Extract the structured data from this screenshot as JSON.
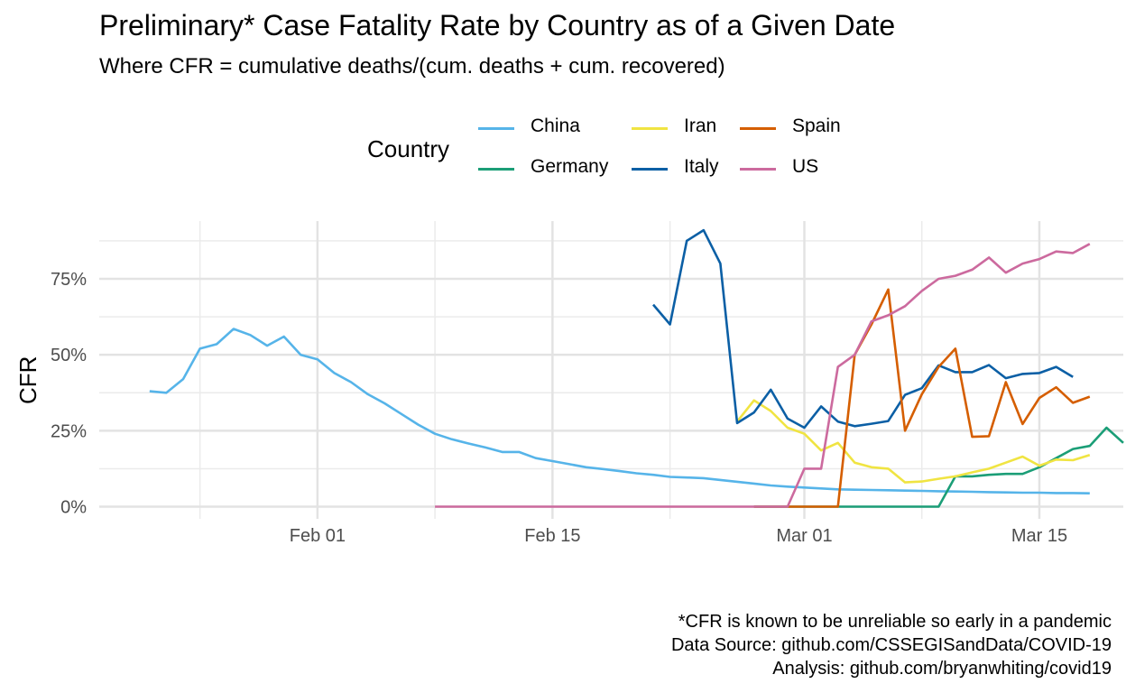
{
  "chart_data": {
    "type": "line",
    "title": "Preliminary* Case Fatality Rate by Country as of a Given Date",
    "subtitle": "Where CFR = cumulative deaths/(cum. deaths + cum. recovered)",
    "xlabel": "",
    "ylabel": "CFR",
    "legend_title": "Country",
    "legend_position": "top",
    "grid": true,
    "x_ticks": [
      "Feb 01",
      "Feb 15",
      "Mar 01",
      "Mar 15"
    ],
    "x_tick_dates": [
      "2020-02-01",
      "2020-02-15",
      "2020-03-01",
      "2020-03-15"
    ],
    "y_ticks": [
      "0%",
      "25%",
      "50%",
      "75%"
    ],
    "y_tick_values": [
      0,
      0.25,
      0.5,
      0.75
    ],
    "xlim": [
      "2020-01-19",
      "2020-03-20"
    ],
    "ylim": [
      -0.04,
      0.94
    ],
    "start_date": "2020-01-22",
    "series": [
      {
        "name": "China",
        "color": "#56B4E9",
        "start": "2020-01-22",
        "values": [
          0.38,
          0.375,
          0.42,
          0.52,
          0.535,
          0.585,
          0.565,
          0.53,
          0.56,
          0.5,
          0.485,
          0.44,
          0.41,
          0.37,
          0.34,
          0.305,
          0.27,
          0.24,
          0.222,
          0.208,
          0.195,
          0.18,
          0.18,
          0.16,
          0.15,
          0.14,
          0.13,
          0.124,
          0.117,
          0.11,
          0.105,
          0.098,
          0.096,
          0.094,
          0.088,
          0.082,
          0.076,
          0.07,
          0.066,
          0.063,
          0.06,
          0.057,
          0.056,
          0.055,
          0.054,
          0.053,
          0.052,
          0.051,
          0.05,
          0.049,
          0.048,
          0.047,
          0.046,
          0.046,
          0.045,
          0.045,
          0.044
        ]
      },
      {
        "name": "Germany",
        "color": "#1B9E77",
        "start": "2020-02-27",
        "values": [
          0,
          0,
          0,
          0,
          0,
          0,
          0,
          0,
          0,
          0,
          0,
          0,
          0.1,
          0.1,
          0.105,
          0.108,
          0.108,
          0.13,
          0.16,
          0.19,
          0.2,
          0.26,
          0.21
        ]
      },
      {
        "name": "Iran",
        "color": "#F0E442",
        "start": "2020-02-26",
        "values": [
          0.28,
          0.35,
          0.315,
          0.26,
          0.24,
          0.185,
          0.21,
          0.145,
          0.13,
          0.125,
          0.08,
          0.083,
          0.092,
          0.1,
          0.113,
          0.125,
          0.145,
          0.165,
          0.135,
          0.155,
          0.153,
          0.17
        ]
      },
      {
        "name": "Italy",
        "color": "#0B5FA5",
        "start": "2020-02-21",
        "values": [
          0.665,
          0.6,
          0.875,
          0.91,
          0.8,
          0.275,
          0.31,
          0.385,
          0.29,
          0.26,
          0.33,
          0.28,
          0.265,
          0.273,
          0.282,
          0.368,
          0.39,
          0.465,
          0.443,
          0.443,
          0.466,
          0.423,
          0.437,
          0.44,
          0.46,
          0.427
        ]
      },
      {
        "name": "Spain",
        "color": "#D55E00",
        "start": "2020-02-27",
        "values": [
          0,
          0,
          0,
          0,
          0,
          0,
          0.5,
          0.6,
          0.715,
          0.25,
          0.37,
          0.46,
          0.52,
          0.23,
          0.232,
          0.41,
          0.272,
          0.358,
          0.393,
          0.342,
          0.362
        ]
      },
      {
        "name": "US",
        "color": "#CC6A9E",
        "start": "2020-02-08",
        "values": [
          0,
          0,
          0,
          0,
          0,
          0,
          0,
          0,
          0,
          0,
          0,
          0,
          0,
          0,
          0,
          0,
          0,
          0,
          0,
          0,
          0,
          0,
          0.125,
          0.125,
          0.46,
          0.5,
          0.61,
          0.63,
          0.66,
          0.71,
          0.75,
          0.76,
          0.78,
          0.82,
          0.77,
          0.8,
          0.815,
          0.84,
          0.835,
          0.865
        ]
      }
    ],
    "legend": {
      "entries": [
        "China",
        "Iran",
        "Spain",
        "Germany",
        "Italy",
        "US"
      ]
    }
  },
  "captions": {
    "line1": "*CFR is known to be unreliable so early in a pandemic",
    "line2": "Data Source: github.com/CSSEGISandData/COVID-19",
    "line3": "Analysis: github.com/bryanwhiting/covid19"
  }
}
